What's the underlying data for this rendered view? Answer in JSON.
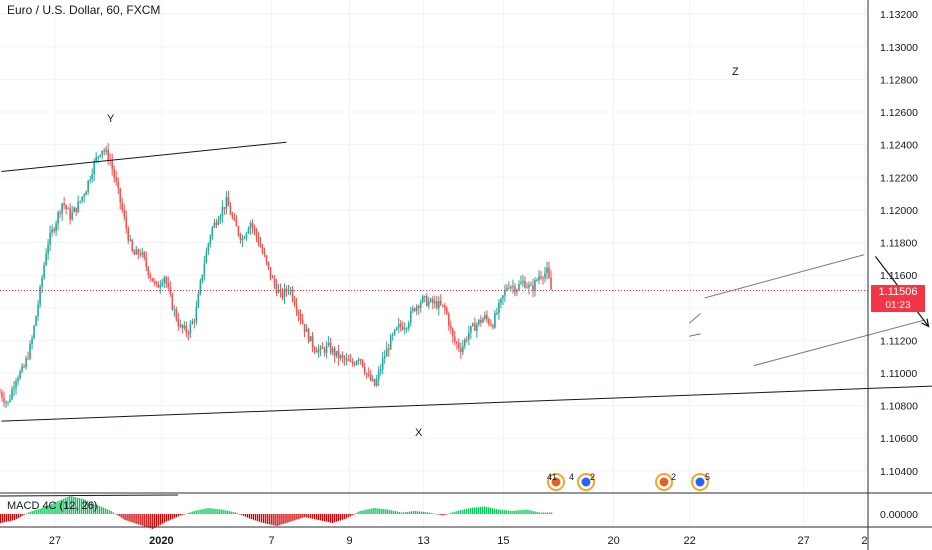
{
  "header": {
    "symbol_title": "Euro / U.S. Dollar, 60, FXCM"
  },
  "macd_label": "MACD 4C (12, 26)",
  "current_price": {
    "value_label": "1.11506",
    "timer": "01:23"
  },
  "annotations": {
    "y_label": "Y",
    "x_label": "X",
    "z_label": "Z"
  },
  "event_badges": [
    {
      "count": "41"
    },
    {
      "count": "4"
    },
    {
      "count": "2"
    },
    {
      "count": "2"
    },
    {
      "count": "5"
    }
  ],
  "colors": {
    "up": "#26a69a",
    "down": "#ef5350",
    "macd_positive": "#00c853",
    "macd_negative": "#d50000",
    "current_price": "#f23645"
  },
  "chart_data": {
    "type": "candlestick",
    "title": "Euro / U.S. Dollar, 60, FXCM",
    "x_tick_labels": [
      "27",
      "2020",
      "7",
      "9",
      "13",
      "15",
      "20",
      "22",
      "27",
      "2"
    ],
    "y_tick_labels": [
      "1.13200",
      "1.13000",
      "1.12800",
      "1.12600",
      "1.12400",
      "1.12200",
      "1.12000",
      "1.11800",
      "1.11600",
      "1.11400",
      "1.11200",
      "1.11000",
      "1.10800",
      "1.10600",
      "1.10400"
    ],
    "ylim": [
      1.1035,
      1.1325
    ],
    "macd_tick_labels": [
      "0.00000"
    ],
    "grid": true,
    "price_path": [
      [
        0,
        1.1088
      ],
      [
        2,
        1.1081
      ],
      [
        4,
        1.1097
      ],
      [
        6,
        1.1102
      ],
      [
        8,
        1.1118
      ],
      [
        10,
        1.1146
      ],
      [
        12,
        1.1178
      ],
      [
        14,
        1.1191
      ],
      [
        16,
        1.1205
      ],
      [
        18,
        1.1196
      ],
      [
        20,
        1.1203
      ],
      [
        22,
        1.1213
      ],
      [
        24,
        1.1228
      ],
      [
        26,
        1.1238
      ],
      [
        28,
        1.1232
      ],
      [
        30,
        1.1213
      ],
      [
        32,
        1.1192
      ],
      [
        34,
        1.1172
      ],
      [
        36,
        1.1174
      ],
      [
        38,
        1.1162
      ],
      [
        40,
        1.1152
      ],
      [
        42,
        1.116
      ],
      [
        44,
        1.1142
      ],
      [
        46,
        1.1128
      ],
      [
        48,
        1.1125
      ],
      [
        50,
        1.1135
      ],
      [
        52,
        1.1165
      ],
      [
        54,
        1.1187
      ],
      [
        56,
        1.1197
      ],
      [
        58,
        1.1205
      ],
      [
        60,
        1.1191
      ],
      [
        62,
        1.1182
      ],
      [
        64,
        1.1193
      ],
      [
        66,
        1.1182
      ],
      [
        68,
        1.1168
      ],
      [
        70,
        1.1155
      ],
      [
        72,
        1.1147
      ],
      [
        74,
        1.1153
      ],
      [
        76,
        1.114
      ],
      [
        78,
        1.1127
      ],
      [
        80,
        1.1117
      ],
      [
        82,
        1.1113
      ],
      [
        84,
        1.1116
      ],
      [
        86,
        1.1111
      ],
      [
        88,
        1.1108
      ],
      [
        90,
        1.1105
      ],
      [
        92,
        1.1111
      ],
      [
        94,
        1.1098
      ],
      [
        96,
        1.1092
      ],
      [
        98,
        1.1108
      ],
      [
        100,
        1.112
      ],
      [
        102,
        1.1128
      ],
      [
        104,
        1.113
      ],
      [
        106,
        1.114
      ],
      [
        108,
        1.1145
      ],
      [
        110,
        1.1143
      ],
      [
        112,
        1.1142
      ],
      [
        114,
        1.1139
      ],
      [
        116,
        1.112
      ],
      [
        118,
        1.1115
      ],
      [
        120,
        1.1125
      ],
      [
        122,
        1.113
      ],
      [
        124,
        1.1134
      ],
      [
        126,
        1.113
      ],
      [
        128,
        1.1142
      ],
      [
        130,
        1.1155
      ],
      [
        132,
        1.1152
      ],
      [
        134,
        1.1156
      ],
      [
        136,
        1.1151
      ],
      [
        138,
        1.116
      ],
      [
        140,
        1.1162
      ],
      [
        141,
        1.1151
      ]
    ],
    "candles_per_day": 24,
    "macd_series": [
      -0.0006,
      -0.0004,
      0.0001,
      0.0004,
      0.0008,
      0.0012,
      0.001,
      0.0006,
      0.0002,
      -0.0004,
      -0.0007,
      -0.001,
      -0.0005,
      -0.0001,
      0.0002,
      0.0004,
      0.0003,
      0.0001,
      -0.0003,
      -0.0006,
      -0.0008,
      -0.0005,
      -0.0002,
      -0.0004,
      -0.0006,
      -0.0003,
      0.0002,
      0.0004,
      0.0003,
      0.0001,
      0.0002,
      0.0001,
      -0.0001,
      0.0002,
      0.0004,
      0.0005,
      0.0003,
      0.0002,
      0.0003,
      0.0001
    ],
    "drawings": {
      "upper_trendline": [
        [
          -1.2,
          1.12235
        ],
        [
          6.3,
          1.12415
        ]
      ],
      "lower_trendline": [
        [
          -1.2,
          1.10705
        ],
        [
          23.9,
          1.10925
        ]
      ],
      "channel_upper": [
        [
          16.9,
          1.11305
        ],
        [
          17.2,
          1.11365
        ]
      ],
      "channel_upper_2": [
        [
          17.3,
          1.1146
        ],
        [
          21.5,
          1.11725
        ]
      ],
      "channel_lower": [
        [
          16.9,
          1.11225
        ],
        [
          17.2,
          1.1124
        ]
      ],
      "channel_lower_2": [
        [
          18.6,
          1.11045
        ],
        [
          23.1,
          1.11325
        ]
      ],
      "projection_down": [
        [
          21.8,
          1.11715
        ],
        [
          23.2,
          1.11285
        ]
      ],
      "projection_up": [
        [
          23.5,
          1.11305
        ],
        [
          29.2,
          1.12415
        ]
      ],
      "current_price_line": 1.11506
    }
  }
}
